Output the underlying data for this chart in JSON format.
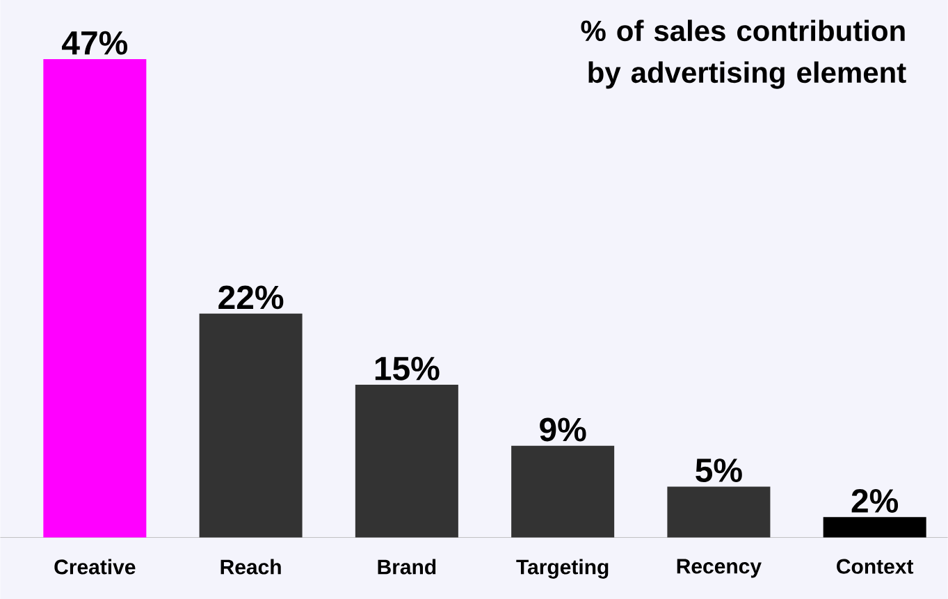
{
  "chart_data": {
    "type": "bar",
    "title": "% of sales contribution by advertising element",
    "categories": [
      "Creative",
      "Reach",
      "Brand",
      "Targeting",
      "Recency",
      "Context"
    ],
    "values": [
      47,
      22,
      15,
      9,
      5,
      2
    ],
    "colors": [
      "#ff00ff",
      "#333333",
      "#333333",
      "#333333",
      "#333333",
      "#000000"
    ],
    "value_labels": [
      "47%",
      "22%",
      "15%",
      "9%",
      "5%",
      "2%"
    ]
  }
}
